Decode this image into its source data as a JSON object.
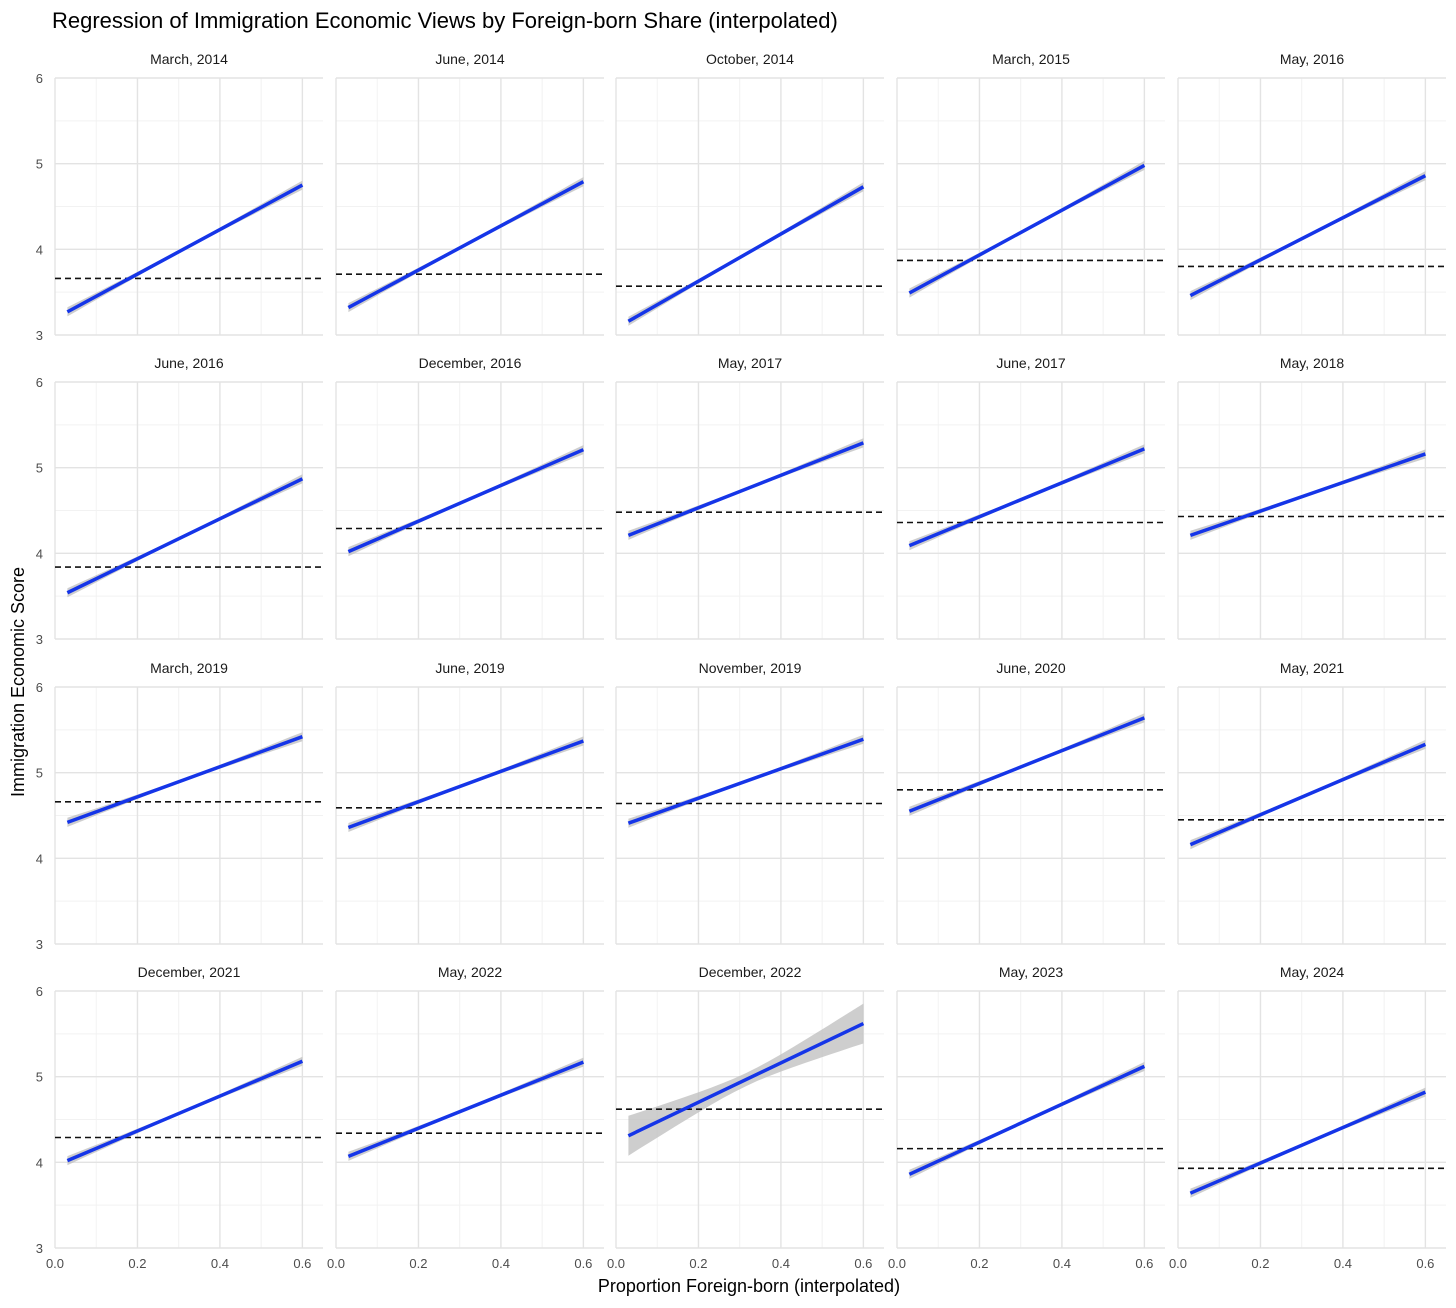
{
  "chart_data": {
    "type": "line",
    "title": "Regression of Immigration Economic Views by Foreign-born Share (interpolated)",
    "xlabel": "Proportion Foreign-born (interpolated)",
    "ylabel": "Immigration Economic Score",
    "xlim": [
      0.0,
      0.65
    ],
    "ylim": [
      3,
      6
    ],
    "x_ticks": [
      0.0,
      0.2,
      0.4,
      0.6
    ],
    "x_tick_labels": [
      "0.0",
      "0.2",
      "0.4",
      "0.6"
    ],
    "y_ticks": [
      3,
      4,
      5,
      6
    ],
    "y_tick_labels": [
      "3",
      "4",
      "5",
      "6"
    ],
    "grid": true,
    "legend": "none",
    "line_color": "#1535e8",
    "ribbon_color": "#bdbdbd",
    "mean_line_style": "dashed",
    "fit_x_range": [
      0.03,
      0.6
    ],
    "facets": [
      {
        "label": "March, 2014",
        "start": 3.27,
        "end": 4.75,
        "mean": 3.66,
        "se": 0.05
      },
      {
        "label": "June, 2014",
        "start": 3.32,
        "end": 4.79,
        "mean": 3.71,
        "se": 0.05
      },
      {
        "label": "October, 2014",
        "start": 3.16,
        "end": 4.73,
        "mean": 3.57,
        "se": 0.05
      },
      {
        "label": "March, 2015",
        "start": 3.49,
        "end": 4.98,
        "mean": 3.87,
        "se": 0.05
      },
      {
        "label": "May, 2016",
        "start": 3.46,
        "end": 4.86,
        "mean": 3.8,
        "se": 0.05
      },
      {
        "label": "June, 2016",
        "start": 3.54,
        "end": 4.87,
        "mean": 3.84,
        "se": 0.05
      },
      {
        "label": "December, 2016",
        "start": 4.02,
        "end": 5.21,
        "mean": 4.29,
        "se": 0.05
      },
      {
        "label": "May, 2017",
        "start": 4.21,
        "end": 5.29,
        "mean": 4.48,
        "se": 0.05
      },
      {
        "label": "June, 2017",
        "start": 4.09,
        "end": 5.22,
        "mean": 4.36,
        "se": 0.05
      },
      {
        "label": "May, 2018",
        "start": 4.21,
        "end": 5.16,
        "mean": 4.43,
        "se": 0.05
      },
      {
        "label": "March, 2019",
        "start": 4.42,
        "end": 5.42,
        "mean": 4.66,
        "se": 0.05
      },
      {
        "label": "June, 2019",
        "start": 4.36,
        "end": 5.37,
        "mean": 4.59,
        "se": 0.05
      },
      {
        "label": "November, 2019",
        "start": 4.41,
        "end": 5.39,
        "mean": 4.64,
        "se": 0.05
      },
      {
        "label": "June, 2020",
        "start": 4.55,
        "end": 5.64,
        "mean": 4.8,
        "se": 0.05
      },
      {
        "label": "May, 2021",
        "start": 4.16,
        "end": 5.33,
        "mean": 4.45,
        "se": 0.05
      },
      {
        "label": "December, 2021",
        "start": 4.02,
        "end": 5.18,
        "mean": 4.29,
        "se": 0.05
      },
      {
        "label": "May, 2022",
        "start": 4.07,
        "end": 5.17,
        "mean": 4.34,
        "se": 0.05
      },
      {
        "label": "December, 2022",
        "start": 4.31,
        "end": 5.62,
        "mean": 4.62,
        "se": 0.22
      },
      {
        "label": "May, 2023",
        "start": 3.86,
        "end": 5.12,
        "mean": 4.16,
        "se": 0.05
      },
      {
        "label": "May, 2024",
        "start": 3.64,
        "end": 4.82,
        "mean": 3.93,
        "se": 0.05
      }
    ]
  }
}
